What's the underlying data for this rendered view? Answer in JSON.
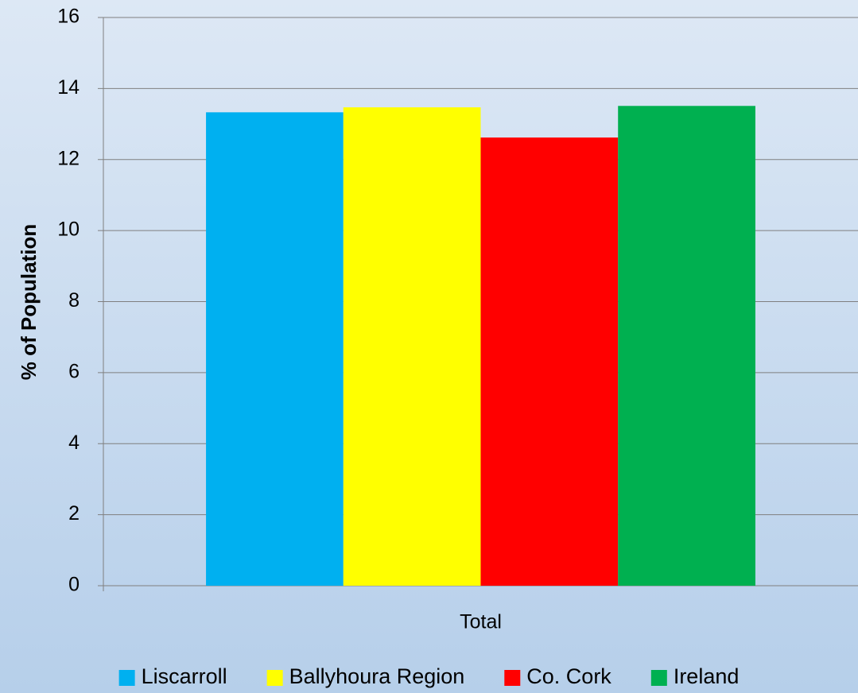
{
  "chart_data": {
    "type": "bar",
    "y_label": "% of Population",
    "categories": [
      "Total"
    ],
    "series": [
      {
        "name": "Liscarroll",
        "color": "#00b0f0",
        "values": [
          13.33
        ]
      },
      {
        "name": "Ballyhoura Region",
        "color": "#ffff00",
        "values": [
          13.47
        ]
      },
      {
        "name": "Co. Cork",
        "color": "#ff0000",
        "values": [
          12.62
        ]
      },
      {
        "name": "Ireland",
        "color": "#00b050",
        "values": [
          13.51
        ]
      }
    ],
    "ylim": [
      0,
      16
    ],
    "yticks": [
      0,
      2,
      4,
      6,
      8,
      10,
      12,
      14,
      16
    ],
    "grid": true,
    "legend": "bottom"
  }
}
